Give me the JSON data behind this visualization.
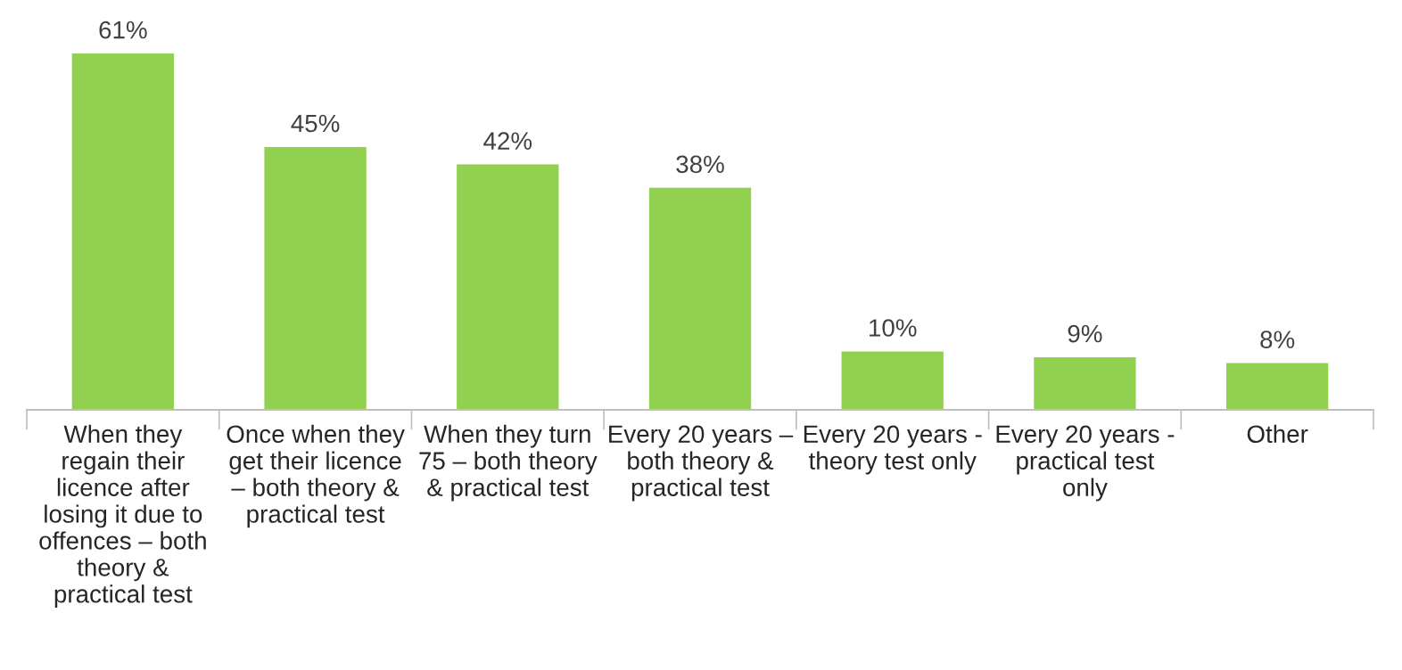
{
  "chart_data": {
    "type": "bar",
    "categories": [
      "When they\nregain their\nlicence after\nlosing it due to\noffences – both\ntheory &\npractical test",
      "Once when they\nget their licence\n– both theory &\npractical test",
      "When they turn\n75 – both theory\n& practical test",
      "Every 20 years –\nboth theory &\npractical test",
      "Every 20 years -\ntheory test only",
      "Every 20 years -\npractical test\nonly",
      "Other"
    ],
    "values": [
      61,
      45,
      42,
      38,
      10,
      9,
      8
    ],
    "value_labels": [
      "61%",
      "45%",
      "42%",
      "38%",
      "10%",
      "9%",
      "8%"
    ],
    "color": "#92d050",
    "grid": false,
    "legend": false
  }
}
